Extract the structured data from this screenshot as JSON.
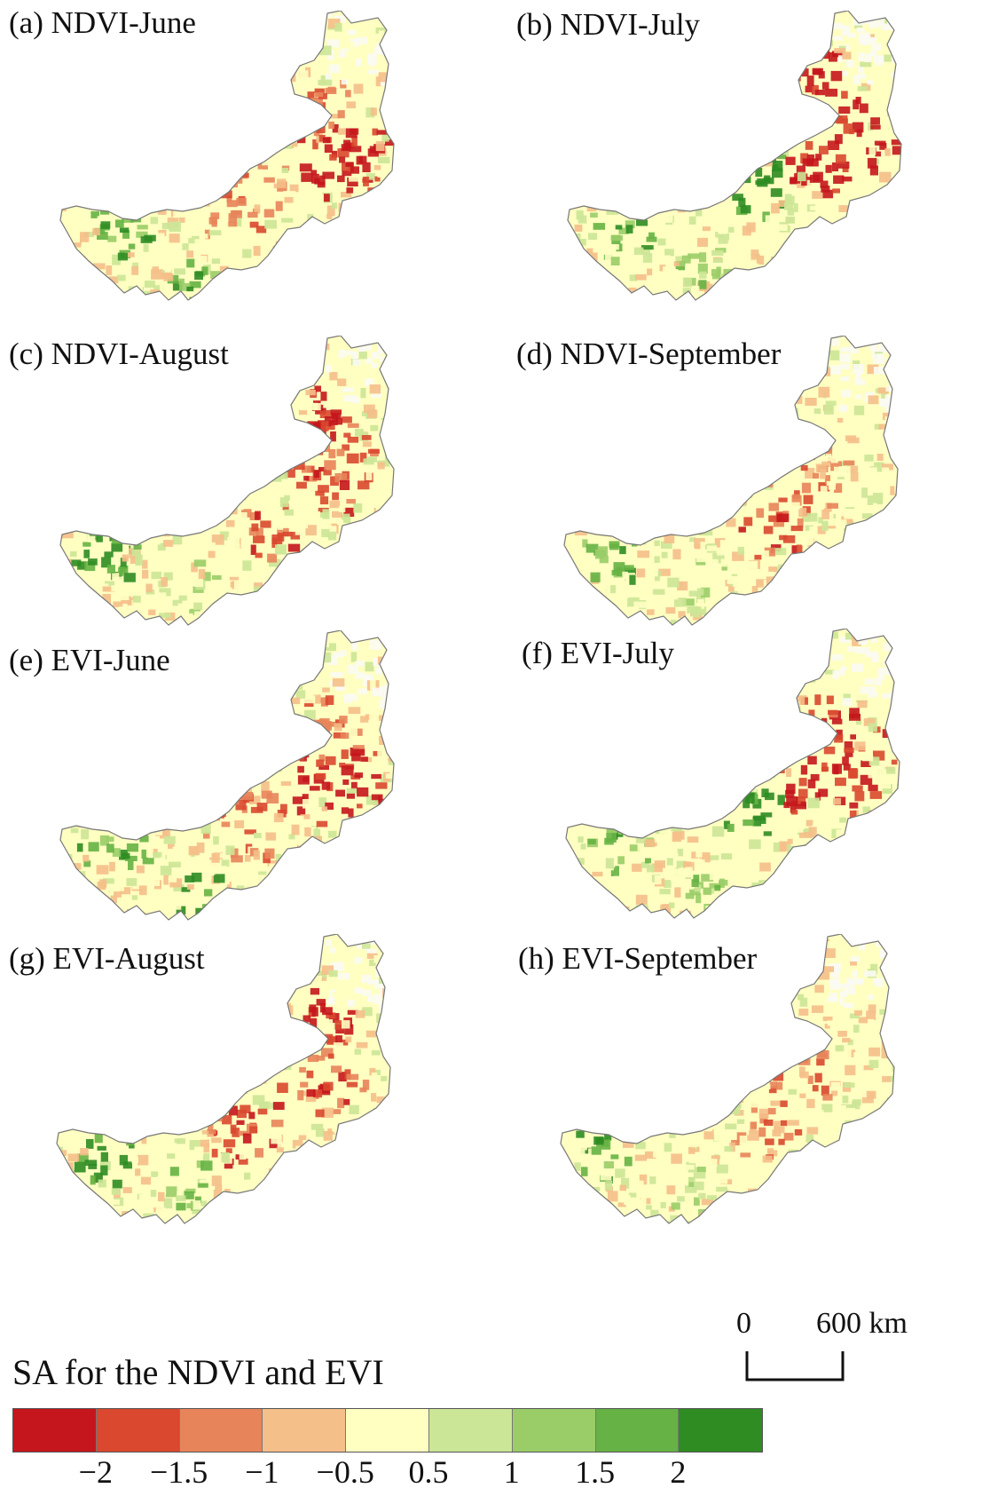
{
  "panels": [
    {
      "title": "(a) NDVI-June",
      "pattern": "ndvi-june"
    },
    {
      "title": "(b) NDVI-July",
      "pattern": "ndvi-july"
    },
    {
      "title": "(c) NDVI-August",
      "pattern": "ndvi-august"
    },
    {
      "title": "(d) NDVI-September",
      "pattern": "ndvi-september"
    },
    {
      "title": "(e) EVI-June",
      "pattern": "evi-june"
    },
    {
      "title": "(f) EVI-July",
      "pattern": "evi-july"
    },
    {
      "title": "(g) EVI-August",
      "pattern": "evi-august"
    },
    {
      "title": "(h) EVI-September",
      "pattern": "evi-september"
    }
  ],
  "legend": {
    "title": "SA  for the NDVI and EVI",
    "colors": [
      "#c4161c",
      "#d9482f",
      "#e8845a",
      "#f5bf8a",
      "#ffffc2",
      "#cce697",
      "#9acd68",
      "#66b244",
      "#2e8c22"
    ],
    "ticks": [
      "−2",
      "−1.5",
      "−1",
      "−0.5",
      "0.5",
      "1",
      "1.5",
      "2"
    ]
  },
  "scale_bar": {
    "start_label": "0",
    "end_label": "600 km"
  }
}
